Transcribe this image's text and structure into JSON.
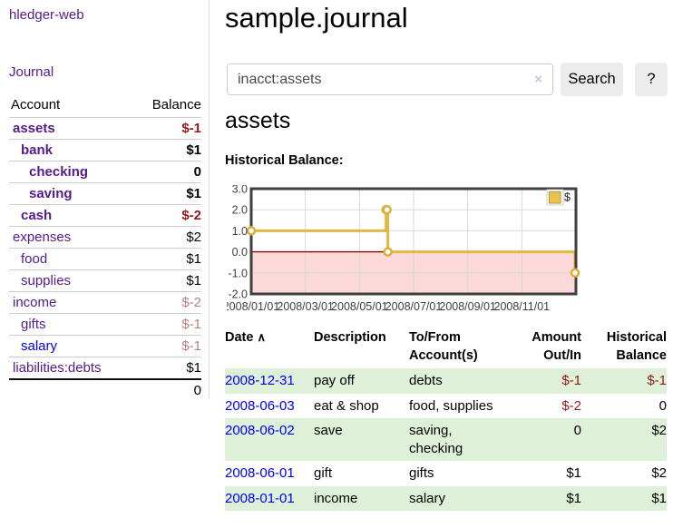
{
  "app": {
    "brand": "hledger-web",
    "nav_journal": "Journal"
  },
  "sidebar": {
    "headers": {
      "account": "Account",
      "balance": "Balance"
    },
    "accounts": [
      {
        "name": "assets",
        "balance": "$-1",
        "depth": 1,
        "bold": true,
        "blue": false
      },
      {
        "name": "bank",
        "balance": "$1",
        "depth": 2,
        "bold": true,
        "blue": false
      },
      {
        "name": "checking",
        "balance": "0",
        "depth": 3,
        "bold": true,
        "blue": false
      },
      {
        "name": "saving",
        "balance": "$1",
        "depth": 3,
        "bold": true,
        "blue": false
      },
      {
        "name": "cash",
        "balance": "$-2",
        "depth": 2,
        "bold": true,
        "blue": false
      },
      {
        "name": "expenses",
        "balance": "$2",
        "depth": 1,
        "bold": false,
        "blue": false
      },
      {
        "name": "food",
        "balance": "$1",
        "depth": 2,
        "bold": false,
        "blue": false
      },
      {
        "name": "supplies",
        "balance": "$1",
        "depth": 2,
        "bold": false,
        "blue": false
      },
      {
        "name": "income",
        "balance": "$-2",
        "depth": 1,
        "bold": false,
        "blue": false
      },
      {
        "name": "gifts",
        "balance": "$-1",
        "depth": 2,
        "bold": false,
        "blue": false
      },
      {
        "name": "salary",
        "balance": "$-1",
        "depth": 2,
        "bold": false,
        "blue": true
      },
      {
        "name": "liabilities:debts",
        "balance": "$1",
        "depth": 1,
        "bold": false,
        "blue": false
      }
    ],
    "total": "0"
  },
  "main": {
    "title": "sample.journal",
    "account_heading": "assets",
    "chart_label": "Historical Balance:",
    "search": {
      "value": "inacct:assets",
      "clear_icon": "×",
      "search_label": "Search",
      "help_label": "?"
    }
  },
  "chart_data": {
    "type": "line",
    "step": true,
    "title": "Historical Balance:",
    "legend": "$",
    "legend_position": "top-right",
    "x_range": [
      "2008-01-01",
      "2009-01-01"
    ],
    "ylim": [
      -2,
      3
    ],
    "y_ticks": [
      "3.0",
      "2.0",
      "1.0",
      "0.0",
      "-1.0",
      "-2.0"
    ],
    "y_tick_values": [
      3,
      2,
      1,
      0,
      -1,
      -2
    ],
    "x_ticks": [
      "2008/01/01",
      "2008/03/01",
      "2008/05/01",
      "2008/07/01",
      "2008/09/01",
      "2008/11/01"
    ],
    "grid": true,
    "negative_region_fill": "#fbd9d9",
    "zero_line_color": "#8b0000",
    "line_color": "#e0b845",
    "series": [
      {
        "name": "$",
        "points": [
          [
            "2008-01-01",
            1
          ],
          [
            "2008-06-01",
            2
          ],
          [
            "2008-06-02",
            2
          ],
          [
            "2008-06-03",
            0
          ],
          [
            "2008-12-31",
            -1
          ]
        ]
      }
    ]
  },
  "register": {
    "sort_icon": "∧",
    "headers": [
      {
        "label": "Date",
        "align": "left",
        "sorted": true
      },
      {
        "label": "Description",
        "align": "left",
        "sorted": false
      },
      {
        "label": "To/From Account(s)",
        "align": "left",
        "sorted": false
      },
      {
        "label": "Amount Out/In",
        "align": "right",
        "sorted": false
      },
      {
        "label": "Historical Balance",
        "align": "right",
        "sorted": false
      }
    ],
    "rows": [
      {
        "date": "2008-12-31",
        "description": "pay off",
        "accounts": "debts",
        "amount": "$-1",
        "balance": "$-1"
      },
      {
        "date": "2008-06-03",
        "description": "eat & shop",
        "accounts": "food, supplies",
        "amount": "$-2",
        "balance": "0"
      },
      {
        "date": "2008-06-02",
        "description": "save",
        "accounts": "saving, checking",
        "amount": "0",
        "balance": "$2"
      },
      {
        "date": "2008-06-01",
        "description": "gift",
        "accounts": "gifts",
        "amount": "$1",
        "balance": "$2"
      },
      {
        "date": "2008-01-01",
        "description": "income",
        "accounts": "salary",
        "amount": "$1",
        "balance": "$1"
      }
    ]
  },
  "colors": {
    "link_purple": "#551a8b",
    "link_blue": "#0000ee",
    "negative_strong": "#941a1a",
    "negative_muted": "#bd7f7f",
    "row_green": "#dff0d8",
    "chart_line_gold": "#e0b845",
    "chart_negative_pink": "#fbd9d9",
    "chart_zero_line": "#8b0000"
  }
}
